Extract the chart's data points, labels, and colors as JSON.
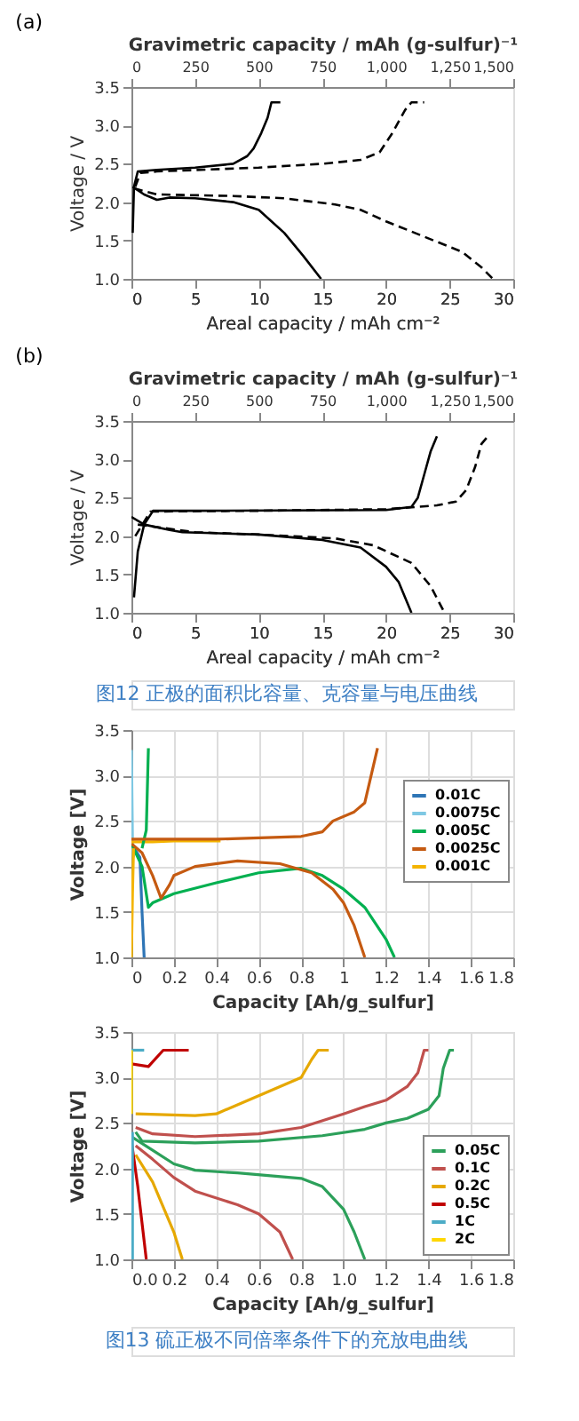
{
  "chart_data": [
    {
      "type": "line",
      "title": "(a)",
      "xlabel": "Areal capacity / mAh cm⁻²",
      "x2label": "Gravimetric capacity / mAh (g-sulfur)⁻¹",
      "ylabel": "Voltage / V",
      "xlim": [
        0,
        30
      ],
      "xticks": [
        0,
        5,
        10,
        15,
        20,
        25,
        30
      ],
      "x2lim": [
        0,
        1500
      ],
      "x2ticks": [
        0,
        250,
        500,
        750,
        {
          "value": 1000,
          "label": "1,000"
        },
        {
          "value": 1250,
          "label": "1,250"
        },
        {
          "value": 1500,
          "label": "1,500"
        }
      ],
      "ylim": [
        1.0,
        3.5
      ],
      "yticks": [
        {
          "value": 1.0,
          "label": "1.0"
        },
        1.5,
        {
          "value": 2.0,
          "label": "2.0"
        },
        2.5,
        {
          "value": 3.0,
          "label": "3.0"
        },
        3.5
      ],
      "grid": false,
      "legend": false,
      "series": [
        {
          "color": "#000000",
          "line_style": "solid",
          "x": [
            0.1,
            0.2,
            0.5,
            2,
            5,
            8,
            9.1,
            9.6,
            10.2,
            10.7,
            11.0,
            11.7
          ],
          "values": [
            1.6,
            2.2,
            2.4,
            2.42,
            2.45,
            2.5,
            2.6,
            2.7,
            2.9,
            3.1,
            3.3,
            3.3
          ]
        },
        {
          "color": "#000000",
          "line_style": "solid",
          "x": [
            0.1,
            1,
            2,
            3,
            5,
            8,
            10,
            12,
            13.5,
            14.9
          ],
          "values": [
            2.2,
            2.1,
            2.03,
            2.06,
            2.05,
            2.0,
            1.9,
            1.6,
            1.3,
            1.0
          ]
        },
        {
          "color": "#000000",
          "line_style": "dashed",
          "x": [
            0.3,
            0.7,
            2,
            10,
            15,
            18,
            19.5,
            20.5,
            21.5,
            22,
            23
          ],
          "values": [
            2.2,
            2.38,
            2.4,
            2.45,
            2.5,
            2.55,
            2.65,
            2.9,
            3.2,
            3.3,
            3.3
          ]
        },
        {
          "color": "#000000",
          "line_style": "dashed",
          "x": [
            0.2,
            2,
            8,
            12,
            16,
            18,
            20,
            23,
            26,
            27.5,
            28.4
          ],
          "values": [
            2.18,
            2.1,
            2.08,
            2.05,
            1.97,
            1.9,
            1.75,
            1.55,
            1.35,
            1.15,
            1.0
          ]
        }
      ]
    },
    {
      "type": "line",
      "title": "(b)",
      "xlabel": "Areal capacity / mAh cm⁻²",
      "x2label": "Gravimetric capacity / mAh (g-sulfur)⁻¹",
      "ylabel": "Voltage / V",
      "xlim": [
        0,
        30
      ],
      "xticks": [
        0,
        5,
        10,
        15,
        20,
        25,
        30
      ],
      "x2lim": [
        0,
        1500
      ],
      "x2ticks": [
        0,
        250,
        500,
        750,
        {
          "value": 1000,
          "label": "1,000"
        },
        {
          "value": 1250,
          "label": "1,250"
        },
        {
          "value": 1500,
          "label": "1,500"
        }
      ],
      "ylim": [
        1.0,
        3.5
      ],
      "yticks": [
        {
          "value": 1.0,
          "label": "1.0"
        },
        1.5,
        {
          "value": 2.0,
          "label": "2.0"
        },
        2.5,
        {
          "value": 3.0,
          "label": "3.0"
        },
        3.5
      ],
      "grid": false,
      "legend": false,
      "annotations": [
        "图12 正极的面积比容量、克容量与电压曲线"
      ],
      "series": [
        {
          "color": "#000000",
          "line_style": "solid",
          "x": [
            0.2,
            0.5,
            1,
            1.7,
            5,
            20,
            22,
            22.5,
            23,
            23.5,
            24
          ],
          "values": [
            1.2,
            1.8,
            2.15,
            2.33,
            2.33,
            2.34,
            2.38,
            2.5,
            2.8,
            3.1,
            3.3
          ]
        },
        {
          "color": "#000000",
          "line_style": "solid",
          "x": [
            0,
            1,
            3,
            4,
            10,
            15,
            18,
            20,
            21,
            22
          ],
          "values": [
            2.25,
            2.15,
            2.08,
            2.05,
            2.02,
            1.95,
            1.85,
            1.6,
            1.4,
            1.0
          ]
        },
        {
          "color": "#000000",
          "line_style": "dashed",
          "x": [
            0.3,
            1.5,
            10,
            20,
            24,
            25.5,
            26.3,
            27,
            27.5,
            28
          ],
          "values": [
            2.0,
            2.32,
            2.33,
            2.35,
            2.4,
            2.45,
            2.6,
            2.9,
            3.2,
            3.3
          ]
        },
        {
          "color": "#000000",
          "line_style": "dashed",
          "x": [
            0.5,
            5,
            10,
            16,
            19,
            22,
            23.5,
            24.6
          ],
          "values": [
            2.15,
            2.05,
            2.02,
            1.97,
            1.88,
            1.65,
            1.35,
            1.0
          ]
        }
      ]
    },
    {
      "type": "line",
      "xlabel": "Capacity [Ah/g_sulfur]",
      "ylabel": "Voltage [V]",
      "xlim": [
        0,
        1.8
      ],
      "xticks": [
        0,
        0.2,
        0.4,
        0.6,
        0.8,
        1,
        1.2,
        1.4,
        1.6,
        1.8
      ],
      "ylim": [
        1.0,
        3.5
      ],
      "yticks": [
        {
          "value": 1.0,
          "label": "1.0"
        },
        1.5,
        {
          "value": 2.0,
          "label": "2.0"
        },
        2.5,
        {
          "value": 3.0,
          "label": "3.0"
        },
        3.5
      ],
      "grid": true,
      "legend": "right",
      "series": [
        {
          "name": "0.01C",
          "color": "#2e75b6",
          "x": [
            0,
            0.04,
            0.05,
            0.06
          ],
          "values": [
            2.25,
            2.1,
            1.5,
            1.0
          ]
        },
        {
          "name": "0.0075C",
          "color": "#7ec8e3",
          "x": [
            0,
            0.005,
            0.01
          ],
          "values": [
            3.28,
            2.3,
            2.1
          ]
        },
        {
          "name": "0.005C",
          "color": "#00b050",
          "x": [
            0,
            0.05,
            0.08,
            0.1,
            0.2,
            0.4,
            0.6,
            0.8,
            0.9,
            1.0,
            1.1,
            1.2,
            1.24
          ],
          "values": [
            2.25,
            2.0,
            1.55,
            1.6,
            1.7,
            1.82,
            1.93,
            1.98,
            1.9,
            1.75,
            1.55,
            1.2,
            1.0
          ]
        },
        {
          "name": "0.0025C",
          "color": "#c55a11",
          "x": [
            0,
            0.05,
            0.1,
            0.14,
            0.18,
            0.2,
            0.3,
            0.5,
            0.7,
            0.85,
            0.95,
            1.0,
            1.05,
            1.1
          ],
          "values": [
            2.25,
            2.15,
            1.9,
            1.65,
            1.8,
            1.9,
            2.0,
            2.06,
            2.03,
            1.93,
            1.75,
            1.6,
            1.35,
            1.0
          ]
        },
        {
          "name": "0.001C",
          "color": "#f4b400",
          "x": [
            0,
            0.1,
            0.2,
            0.3,
            0.42
          ],
          "values": [
            2.27,
            2.27,
            2.28,
            2.28,
            2.28
          ]
        },
        {
          "color": "#00b050",
          "x": [
            0.05,
            0.07,
            0.08
          ],
          "values": [
            2.2,
            2.4,
            3.3
          ]
        },
        {
          "color": "#c55a11",
          "x": [
            0,
            0.4,
            0.8,
            0.9,
            0.95,
            1.05,
            1.1,
            1.13,
            1.16
          ],
          "values": [
            2.3,
            2.3,
            2.33,
            2.38,
            2.5,
            2.6,
            2.7,
            3.0,
            3.3
          ]
        },
        {
          "color": "#f4b400",
          "x": [
            0.01,
            0.005,
            0
          ],
          "values": [
            2.2,
            1.7,
            1.0
          ]
        }
      ]
    },
    {
      "type": "line",
      "xlabel": "Capacity [Ah/g_sulfur]",
      "ylabel": "Voltage [V]",
      "xlim": [
        0,
        1.8
      ],
      "xticks": [
        {
          "value": 0,
          "label": "0.0"
        },
        0.2,
        0.4,
        0.6,
        0.8,
        {
          "value": 1,
          "label": "1.0"
        },
        1.2,
        1.4,
        1.6,
        1.8
      ],
      "ylim": [
        1.0,
        3.5
      ],
      "yticks": [
        {
          "value": 1.0,
          "label": "1.0"
        },
        1.5,
        {
          "value": 2.0,
          "label": "2.0"
        },
        2.5,
        {
          "value": 3.0,
          "label": "3.0"
        },
        3.5
      ],
      "grid": true,
      "legend": "bottom right",
      "annotations": [
        "图13 硫正极不同倍率条件下的充放电曲线"
      ],
      "series": [
        {
          "name": "0.05C",
          "color": "#2ca05a",
          "x": [
            0.02,
            0.05,
            0.3,
            0.6,
            0.9,
            1.1,
            1.2,
            1.3,
            1.4,
            1.45,
            1.47,
            1.5,
            1.52
          ],
          "values": [
            2.4,
            2.3,
            2.28,
            2.3,
            2.36,
            2.43,
            2.5,
            2.55,
            2.65,
            2.8,
            3.1,
            3.3,
            3.3
          ]
        },
        {
          "name": "0.1C",
          "color": "#c0504d",
          "x": [
            0.02,
            0.1,
            0.3,
            0.6,
            0.8,
            1.0,
            1.1,
            1.2,
            1.3,
            1.35,
            1.38,
            1.4
          ],
          "values": [
            2.45,
            2.38,
            2.35,
            2.38,
            2.45,
            2.6,
            2.68,
            2.75,
            2.9,
            3.05,
            3.3,
            3.3
          ]
        },
        {
          "name": "0.2C",
          "color": "#e6a800",
          "x": [
            0.02,
            0.3,
            0.4,
            0.6,
            0.8,
            0.85,
            0.88,
            0.93
          ],
          "values": [
            2.6,
            2.58,
            2.6,
            2.8,
            3.0,
            3.2,
            3.3,
            3.3
          ]
        },
        {
          "name": "0.5C",
          "color": "#c00000",
          "x": [
            0,
            0.08,
            0.15,
            0.27
          ],
          "values": [
            3.15,
            3.12,
            3.3,
            3.3
          ]
        },
        {
          "name": "1C",
          "color": "#4bacc6",
          "x": [
            0,
            0.06
          ],
          "values": [
            3.3,
            3.3
          ]
        },
        {
          "name": "2C",
          "color": "#ffd700",
          "x": [
            0,
            0
          ],
          "values": [
            3.3,
            2.6
          ]
        },
        {
          "color": "#2ca05a",
          "x": [
            0,
            0.1,
            0.2,
            0.3,
            0.5,
            0.8,
            0.9,
            1.0,
            1.05,
            1.1
          ],
          "values": [
            2.35,
            2.2,
            2.05,
            1.98,
            1.95,
            1.89,
            1.8,
            1.55,
            1.3,
            1.0
          ]
        },
        {
          "color": "#c0504d",
          "x": [
            0.02,
            0.1,
            0.2,
            0.3,
            0.5,
            0.6,
            0.7,
            0.76
          ],
          "values": [
            2.25,
            2.1,
            1.9,
            1.75,
            1.6,
            1.5,
            1.3,
            1.0
          ]
        },
        {
          "color": "#e6a800",
          "x": [
            0.02,
            0.1,
            0.2,
            0.24
          ],
          "values": [
            2.15,
            1.85,
            1.3,
            1.0
          ]
        },
        {
          "color": "#c00000",
          "x": [
            0,
            0.03,
            0.07
          ],
          "values": [
            2.3,
            1.8,
            1.0
          ]
        },
        {
          "color": "#4bacc6",
          "x": [
            0.005,
            0.005
          ],
          "values": [
            2.4,
            1.0
          ]
        }
      ]
    }
  ]
}
